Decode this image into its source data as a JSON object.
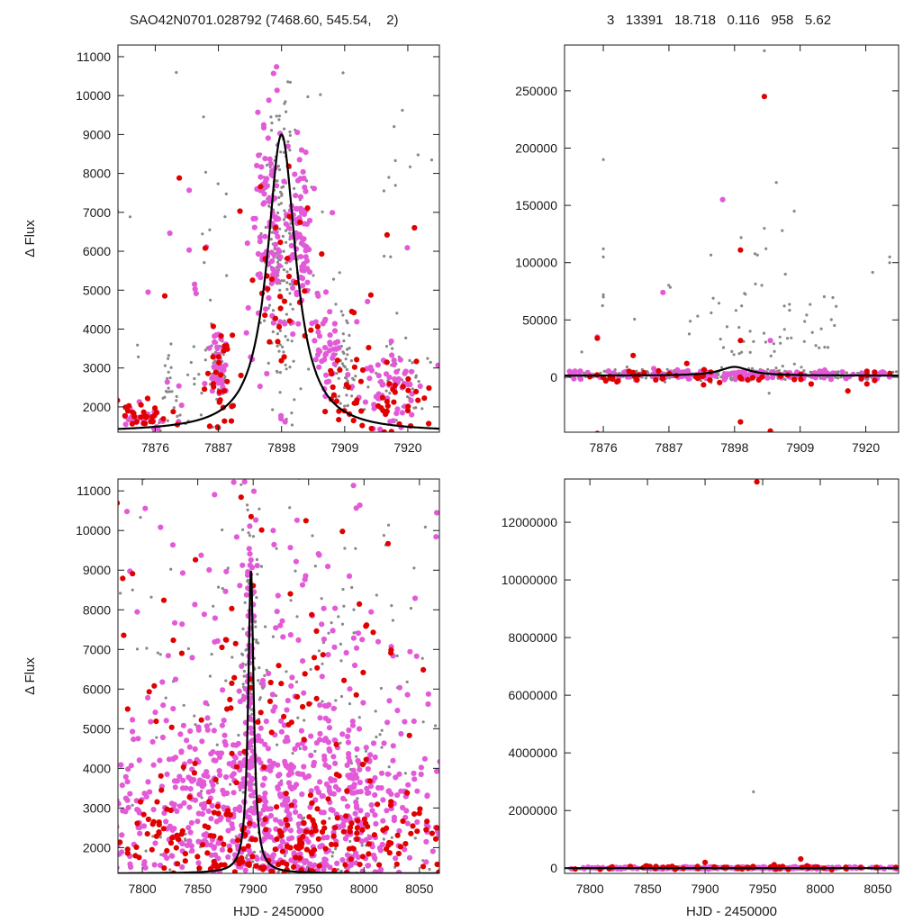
{
  "header": {
    "title_left": "SAO42N0701.028792 (7468.60, 545.54,    2)",
    "title_right": "3   13391   18.718   0.116   958   5.62"
  },
  "chart_data": [
    {
      "type": "scatter",
      "panel": "top-left",
      "xlabel": "",
      "ylabel": "Δ Flux",
      "xlim": [
        7869.5,
        7925.5
      ],
      "ylim": [
        1350,
        11300
      ],
      "xticks": [
        7876,
        7887,
        7898,
        7909,
        7920
      ],
      "yticks": [
        2000,
        3000,
        4000,
        5000,
        6000,
        7000,
        8000,
        9000,
        10000,
        11000
      ],
      "model_curve": {
        "shape": "lorentzian",
        "peak_x": 7898,
        "peak_y": 9000,
        "baseline": 1350,
        "half_width": 3.0
      },
      "series": [
        {
          "color": "#888888",
          "cloud": [
            [
              7887,
              3000,
              1.2,
              700,
              40
            ],
            [
              7898,
              6000,
              2,
              2500,
              160
            ],
            [
              7909,
              3000,
              1.5,
              900,
              50
            ],
            [
              7880,
              2200,
              4,
              900,
              40
            ],
            [
              7918,
              2500,
              4,
              900,
              40
            ],
            [
              7898,
              7000,
              28,
              3500,
              60
            ]
          ]
        },
        {
          "color": "#e35ad8",
          "cloud": [
            [
              7874,
              1700,
              4,
              300,
              30
            ],
            [
              7887,
              3000,
              1,
              600,
              40
            ],
            [
              7896,
              7000,
              1.8,
              1800,
              90
            ],
            [
              7901,
              6500,
              1.8,
              1700,
              80
            ],
            [
              7906,
              3500,
              1.5,
              900,
              40
            ],
            [
              7917,
              2500,
              4,
              800,
              60
            ],
            [
              7898,
              4000,
              26,
              2800,
              40
            ]
          ]
        },
        {
          "color": "#e00000",
          "cloud": [
            [
              7874,
              1750,
              4,
              300,
              30
            ],
            [
              7888,
              2800,
              2,
              900,
              30
            ],
            [
              7899,
              5500,
              3,
              1800,
              25
            ],
            [
              7909,
              2500,
              3,
              700,
              25
            ],
            [
              7918,
              2200,
              4,
              700,
              30
            ],
            [
              7898,
              5000,
              26,
              3000,
              18
            ]
          ]
        }
      ]
    },
    {
      "type": "scatter",
      "panel": "top-right",
      "xlabel": "",
      "ylabel": "",
      "xlim": [
        7869.5,
        7925.5
      ],
      "ylim": [
        -48000,
        290000
      ],
      "xticks": [
        7876,
        7887,
        7898,
        7909,
        7920
      ],
      "yticks": [
        0,
        50000,
        100000,
        150000,
        200000,
        250000
      ],
      "model_curve": {
        "shape": "lorentzian",
        "peak_x": 7898,
        "peak_y": 9000,
        "baseline": 1350,
        "half_width": 3.0
      },
      "series": [
        {
          "color": "#888888",
          "cloud": [
            [
              7897,
              2000,
              26,
              3500,
              300
            ],
            [
              7905,
              40000,
              8,
              35000,
              50
            ],
            [
              7898,
              60000,
              25,
              40000,
              25
            ]
          ],
          "points": [
            [
              7876,
              190000
            ],
            [
              7876,
              112000
            ],
            [
              7876,
              105000
            ],
            [
              7876,
              72000
            ],
            [
              7876,
              70000
            ],
            [
              7908,
              145000
            ],
            [
              7906,
              128000
            ],
            [
              7905,
              170000
            ],
            [
              7903,
              130000
            ],
            [
              7924,
              105000
            ],
            [
              7924,
              100000
            ],
            [
              7903,
              285000
            ]
          ]
        },
        {
          "color": "#e35ad8",
          "cloud": [
            [
              7897,
              2000,
              26,
              3000,
              200
            ]
          ],
          "points": [
            [
              7896,
              155000
            ],
            [
              7886,
              74000
            ],
            [
              7904,
              32000
            ],
            [
              7875,
              35000
            ]
          ]
        },
        {
          "color": "#e00000",
          "cloud": [
            [
              7897,
              0,
              26,
              4000,
              60
            ]
          ],
          "points": [
            [
              7903,
              245000
            ],
            [
              7899,
              111000
            ],
            [
              7875,
              34000
            ],
            [
              7899,
              32000
            ],
            [
              7899,
              -39000
            ],
            [
              7875,
              -49000
            ],
            [
              7904,
              -47000
            ],
            [
              7881,
              19000
            ],
            [
              7890,
              12000
            ],
            [
              7917,
              -12000
            ]
          ]
        }
      ]
    },
    {
      "type": "scatter",
      "panel": "bottom-left",
      "xlabel": "HJD - 2450000",
      "ylabel": "Δ Flux",
      "xlim": [
        7778,
        8068
      ],
      "ylim": [
        1350,
        11300
      ],
      "xticks": [
        7800,
        7850,
        7900,
        7950,
        8000,
        8050
      ],
      "yticks": [
        2000,
        3000,
        4000,
        5000,
        6000,
        7000,
        8000,
        9000,
        10000,
        11000
      ],
      "model_curve": {
        "shape": "lorentzian",
        "peak_x": 7898,
        "peak_y": 9000,
        "baseline": 1350,
        "half_width": 3.0
      },
      "series": [
        {
          "color": "#888888",
          "cloud": [
            [
              7925,
              4500,
              120,
              5500,
              260
            ],
            [
              7898,
              6500,
              6,
              3000,
              80
            ]
          ]
        },
        {
          "color": "#e35ad8",
          "cloud": [
            [
              7925,
              3000,
              120,
              1600,
              700
            ],
            [
              7925,
              6500,
              120,
              4000,
              220
            ],
            [
              7897,
              6500,
              3,
              3000,
              60
            ]
          ]
        },
        {
          "color": "#e00000",
          "cloud": [
            [
              7925,
              2200,
              120,
              900,
              220
            ],
            [
              7925,
              6000,
              120,
              4000,
              100
            ]
          ]
        }
      ]
    },
    {
      "type": "scatter",
      "panel": "bottom-right",
      "xlabel": "HJD - 2450000",
      "ylabel": "",
      "xlim": [
        7778,
        8068
      ],
      "ylim": [
        -180000,
        13500000
      ],
      "xticks": [
        7800,
        7850,
        7900,
        7950,
        8000,
        8050
      ],
      "yticks": [
        0,
        2000000,
        4000000,
        6000000,
        8000000,
        10000000,
        12000000
      ],
      "model_curve": {
        "shape": "lorentzian",
        "peak_x": 7898,
        "peak_y": 9000,
        "baseline": 1350,
        "half_width": 3.0
      },
      "series": [
        {
          "color": "#888888",
          "cloud": [
            [
              7925,
              10000,
              120,
              30000,
              260
            ]
          ],
          "points": [
            [
              7942,
              2650000
            ],
            [
              7945,
              13450000
            ]
          ]
        },
        {
          "color": "#e35ad8",
          "cloud": [
            [
              7925,
              8000,
              120,
              25000,
              220
            ]
          ]
        },
        {
          "color": "#e00000",
          "cloud": [
            [
              7925,
              20000,
              120,
              50000,
              60
            ]
          ],
          "points": [
            [
              7945,
              13400000
            ],
            [
              7983,
              320000
            ],
            [
              7900,
              200000
            ],
            [
              7960,
              120000
            ]
          ]
        }
      ]
    }
  ]
}
